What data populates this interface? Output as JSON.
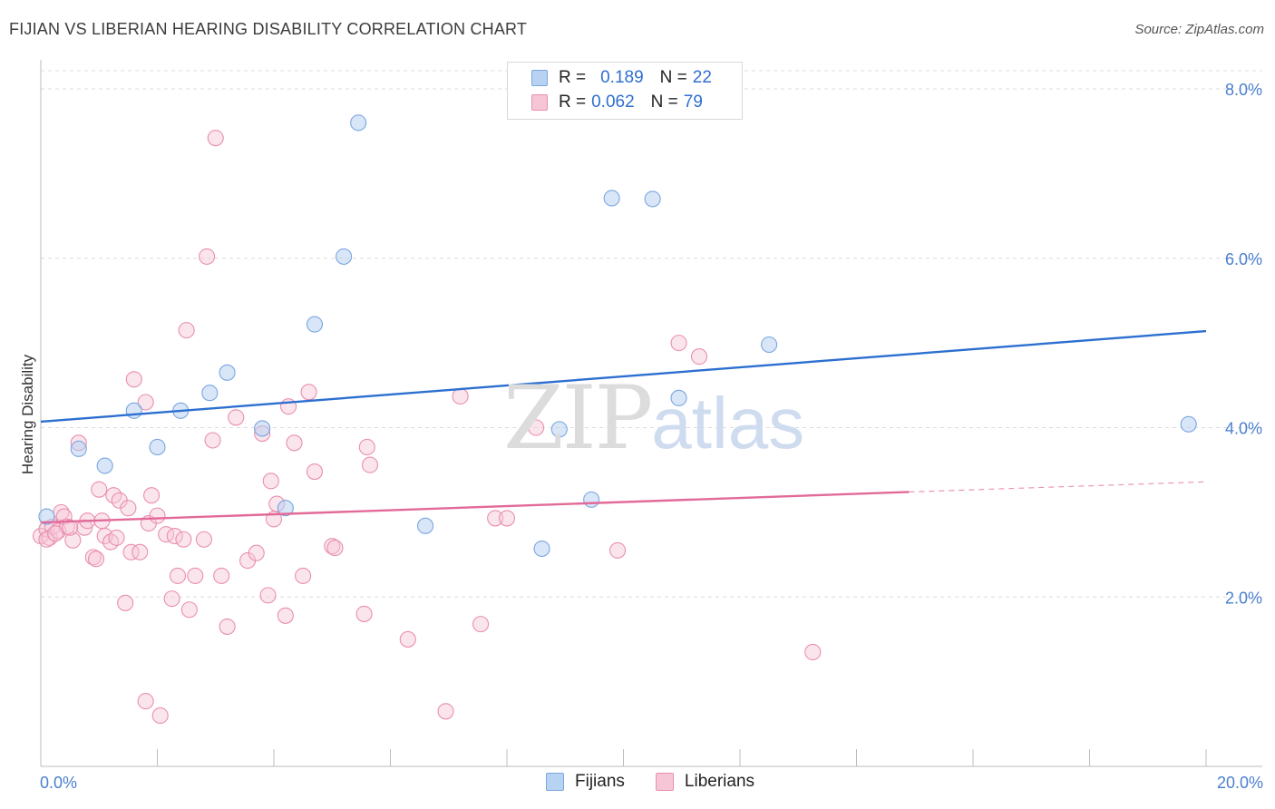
{
  "title": "FIJIAN VS LIBERIAN HEARING DISABILITY CORRELATION CHART",
  "source": "Source: ZipAtlas.com",
  "watermark": {
    "zip": "ZIP",
    "atlas": "atlas"
  },
  "legend": {
    "fijians": {
      "r_label": "R =",
      "r_value": "0.189",
      "n_label": "N =",
      "n_value": "22"
    },
    "liberians": {
      "r_label": "R =",
      "r_value": "0.062",
      "n_label": "N =",
      "n_value": "79"
    }
  },
  "bottom_legend": {
    "fijians": "Fijians",
    "liberians": "Liberians"
  },
  "colors": {
    "fijian_fill": "#b8d2f2",
    "fijian_stroke": "#7aa6e0",
    "fijian_line": "#2c6fd0",
    "liberian_fill": "#f7c6d6",
    "liberian_stroke": "#e98fae",
    "liberian_line": "#e26a98",
    "tick_label": "#4a7fd0",
    "grid": "#dcdcdc"
  },
  "chart_data": {
    "type": "scatter",
    "title": "FIJIAN VS LIBERIAN HEARING DISABILITY CORRELATION CHART",
    "xlabel": "",
    "ylabel": "Hearing Disability",
    "xlim": [
      0,
      20
    ],
    "ylim": [
      0,
      8.3
    ],
    "x_tick_labels": [
      "0.0%",
      "20.0%"
    ],
    "y_tick_labels": [
      "2.0%",
      "4.0%",
      "6.0%",
      "8.0%"
    ],
    "y_ticks": [
      2,
      4,
      6,
      8
    ],
    "grid": "horizontal dashed",
    "legend_position": "top-center",
    "series": [
      {
        "name": "Fijians",
        "points": [
          [
            0.1,
            2.95
          ],
          [
            0.65,
            3.75
          ],
          [
            1.1,
            3.55
          ],
          [
            1.6,
            4.2
          ],
          [
            2.0,
            3.77
          ],
          [
            2.4,
            4.2
          ],
          [
            2.9,
            4.41
          ],
          [
            3.2,
            4.65
          ],
          [
            3.8,
            3.99
          ],
          [
            4.2,
            3.05
          ],
          [
            4.7,
            5.22
          ],
          [
            5.2,
            6.02
          ],
          [
            5.45,
            7.6
          ],
          [
            6.6,
            2.84
          ],
          [
            8.6,
            2.57
          ],
          [
            8.9,
            3.98
          ],
          [
            9.45,
            3.15
          ],
          [
            9.8,
            6.71
          ],
          [
            10.5,
            6.7
          ],
          [
            10.95,
            4.35
          ],
          [
            12.5,
            4.98
          ],
          [
            19.7,
            4.04
          ]
        ],
        "trend": {
          "x": [
            0,
            20
          ],
          "y": [
            4.07,
            5.14
          ]
        }
      },
      {
        "name": "Liberians",
        "points": [
          [
            0.0,
            2.72
          ],
          [
            0.1,
            2.8
          ],
          [
            0.15,
            2.7
          ],
          [
            0.2,
            2.83
          ],
          [
            0.3,
            2.78
          ],
          [
            0.35,
            3.0
          ],
          [
            0.4,
            2.95
          ],
          [
            0.45,
            2.83
          ],
          [
            0.55,
            2.67
          ],
          [
            0.65,
            3.82
          ],
          [
            0.75,
            2.82
          ],
          [
            0.8,
            2.9
          ],
          [
            0.9,
            2.47
          ],
          [
            0.95,
            2.45
          ],
          [
            1.0,
            3.27
          ],
          [
            1.05,
            2.9
          ],
          [
            1.1,
            2.72
          ],
          [
            1.2,
            2.65
          ],
          [
            1.25,
            3.2
          ],
          [
            1.3,
            2.7
          ],
          [
            1.35,
            3.14
          ],
          [
            1.45,
            1.93
          ],
          [
            1.5,
            3.05
          ],
          [
            1.55,
            2.53
          ],
          [
            1.6,
            4.57
          ],
          [
            1.7,
            2.53
          ],
          [
            1.8,
            4.3
          ],
          [
            1.8,
            0.77
          ],
          [
            1.85,
            2.87
          ],
          [
            1.9,
            3.2
          ],
          [
            2.0,
            2.96
          ],
          [
            2.05,
            0.6
          ],
          [
            2.15,
            2.74
          ],
          [
            2.25,
            1.98
          ],
          [
            2.3,
            2.72
          ],
          [
            2.35,
            2.25
          ],
          [
            2.45,
            2.68
          ],
          [
            2.5,
            5.15
          ],
          [
            2.55,
            1.85
          ],
          [
            2.65,
            2.25
          ],
          [
            2.8,
            2.68
          ],
          [
            2.85,
            6.02
          ],
          [
            2.95,
            3.85
          ],
          [
            3.0,
            7.42
          ],
          [
            3.1,
            2.25
          ],
          [
            3.2,
            1.65
          ],
          [
            3.35,
            4.12
          ],
          [
            3.55,
            2.43
          ],
          [
            3.7,
            2.52
          ],
          [
            3.8,
            3.93
          ],
          [
            3.9,
            2.02
          ],
          [
            3.95,
            3.37
          ],
          [
            4.0,
            2.92
          ],
          [
            4.05,
            3.1
          ],
          [
            4.2,
            1.78
          ],
          [
            4.25,
            4.25
          ],
          [
            4.35,
            3.82
          ],
          [
            4.5,
            2.25
          ],
          [
            4.6,
            4.42
          ],
          [
            4.7,
            3.48
          ],
          [
            5.0,
            2.6
          ],
          [
            5.05,
            2.58
          ],
          [
            5.55,
            1.8
          ],
          [
            5.6,
            3.77
          ],
          [
            5.65,
            3.56
          ],
          [
            6.3,
            1.5
          ],
          [
            6.95,
            0.65
          ],
          [
            7.2,
            4.37
          ],
          [
            7.55,
            1.68
          ],
          [
            7.8,
            2.93
          ],
          [
            8.0,
            2.93
          ],
          [
            8.5,
            4.0
          ],
          [
            9.9,
            2.55
          ],
          [
            10.95,
            5.0
          ],
          [
            11.3,
            4.84
          ],
          [
            13.25,
            1.35
          ],
          [
            0.1,
            2.68
          ],
          [
            0.5,
            2.82
          ],
          [
            0.25,
            2.75
          ]
        ],
        "trend": {
          "x": [
            0,
            14.9
          ],
          "y": [
            2.88,
            3.24
          ]
        },
        "trend_dashed": {
          "x": [
            14.9,
            20
          ],
          "y": [
            3.24,
            3.36
          ]
        }
      }
    ]
  }
}
